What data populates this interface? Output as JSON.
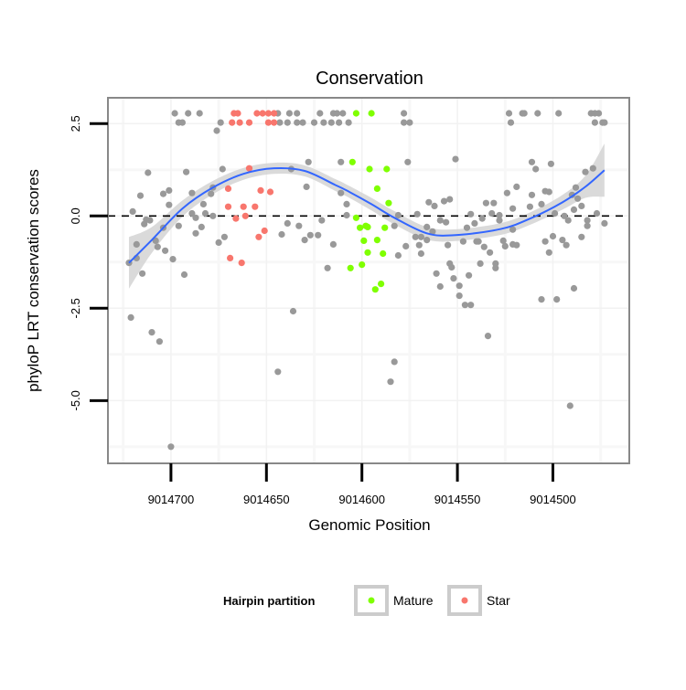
{
  "chart_data": {
    "type": "scatter",
    "title": "Conservation",
    "xlabel": "Genomic Position",
    "ylabel": "phyloP LRT conservation scores",
    "x_reversed": true,
    "xlim": [
      9014733,
      9014460
    ],
    "ylim": [
      -6.7,
      3.2
    ],
    "x_ticks": [
      9014700,
      9014650,
      9014600,
      9014550,
      9014500
    ],
    "x_tick_labels": [
      "9014700",
      "9014650",
      "9014600",
      "9014550",
      "9014500"
    ],
    "y_ticks": [
      2.5,
      0.0,
      -2.5,
      -5.0
    ],
    "y_tick_labels": [
      "2.5",
      "0.0",
      "-2.5",
      "-5.0"
    ],
    "reference_line": 0,
    "grid": true,
    "legend": {
      "title": "Hairpin partition",
      "position": "bottom",
      "entries": [
        {
          "label": "Mature",
          "color": "#7FFF00"
        },
        {
          "label": "Star",
          "color": "#F8766D"
        }
      ]
    },
    "colors": {
      "other": "#999999",
      "Mature": "#7FFF00",
      "Star": "#F8766D",
      "smooth": "#3366FF",
      "ribbon": "#D3D3D3"
    },
    "series": [
      {
        "name": "other",
        "points": [
          [
            9014698,
            2.78
          ],
          [
            9014691,
            2.78
          ],
          [
            9014685,
            2.78
          ],
          [
            9014696,
            2.53
          ],
          [
            9014694,
            2.53
          ],
          [
            9014676,
            2.31
          ],
          [
            9014674,
            2.53
          ],
          [
            9014644,
            2.78
          ],
          [
            9014638,
            2.78
          ],
          [
            9014634,
            2.78
          ],
          [
            9014622,
            2.78
          ],
          [
            9014615,
            2.78
          ],
          [
            9014613,
            2.78
          ],
          [
            9014610,
            2.78
          ],
          [
            9014643,
            2.53
          ],
          [
            9014639,
            2.53
          ],
          [
            9014634,
            2.53
          ],
          [
            9014631,
            2.53
          ],
          [
            9014625,
            2.53
          ],
          [
            9014620,
            2.53
          ],
          [
            9014616,
            2.53
          ],
          [
            9014612,
            2.53
          ],
          [
            9014607,
            2.53
          ],
          [
            9014578,
            2.78
          ],
          [
            9014578,
            2.53
          ],
          [
            9014575,
            2.53
          ],
          [
            9014523,
            2.78
          ],
          [
            9014522,
            2.53
          ],
          [
            9014516,
            2.78
          ],
          [
            9014515,
            2.78
          ],
          [
            9014508,
            2.78
          ],
          [
            9014497,
            2.78
          ],
          [
            9014480,
            2.78
          ],
          [
            9014478,
            2.78
          ],
          [
            9014476,
            2.78
          ],
          [
            9014478,
            2.53
          ],
          [
            9014474,
            2.53
          ],
          [
            9014473,
            2.53
          ],
          [
            9014712,
            1.17
          ],
          [
            9014692,
            1.19
          ],
          [
            9014716,
            0.55
          ],
          [
            9014704,
            0.6
          ],
          [
            9014701,
            0.69
          ],
          [
            9014701,
            0.3
          ],
          [
            9014720,
            0.12
          ],
          [
            9014713,
            -0.1
          ],
          [
            9014711,
            -0.12
          ],
          [
            9014714,
            -0.22
          ],
          [
            9014704,
            -0.32
          ],
          [
            9014696,
            -0.27
          ],
          [
            9014689,
            0.62
          ],
          [
            9014683,
            0.32
          ],
          [
            9014679,
            0.6
          ],
          [
            9014678,
            0.77
          ],
          [
            9014673,
            1.27
          ],
          [
            9014689,
            0.07
          ],
          [
            9014687,
            -0.05
          ],
          [
            9014682,
            0.07
          ],
          [
            9014678,
            0.0
          ],
          [
            9014684,
            -0.3
          ],
          [
            9014687,
            -0.47
          ],
          [
            9014672,
            -0.57
          ],
          [
            9014675,
            -0.72
          ],
          [
            9014718,
            -0.77
          ],
          [
            9014708,
            -0.67
          ],
          [
            9014707,
            -0.84
          ],
          [
            9014703,
            -0.94
          ],
          [
            9014718,
            -1.14
          ],
          [
            9014722,
            -1.27
          ],
          [
            9014699,
            -1.17
          ],
          [
            9014715,
            -1.56
          ],
          [
            9014693,
            -1.59
          ],
          [
            9014721,
            -2.75
          ],
          [
            9014710,
            -3.15
          ],
          [
            9014706,
            -3.4
          ],
          [
            9014700,
            -6.25
          ],
          [
            9014642,
            -0.5
          ],
          [
            9014639,
            -0.2
          ],
          [
            9014633,
            -0.27
          ],
          [
            9014630,
            -0.65
          ],
          [
            9014627,
            -0.52
          ],
          [
            9014623,
            -0.52
          ],
          [
            9014621,
            -0.12
          ],
          [
            9014615,
            -0.77
          ],
          [
            9014618,
            -1.41
          ],
          [
            9014636,
            -2.58
          ],
          [
            9014644,
            -4.22
          ],
          [
            9014637,
            1.27
          ],
          [
            9014629,
            0.79
          ],
          [
            9014628,
            1.46
          ],
          [
            9014611,
            0.62
          ],
          [
            9014608,
            0.32
          ],
          [
            9014608,
            0.02
          ],
          [
            9014611,
            1.46
          ],
          [
            9014576,
            1.46
          ],
          [
            9014551,
            1.54
          ],
          [
            9014511,
            1.46
          ],
          [
            9014509,
            1.27
          ],
          [
            9014501,
            1.41
          ],
          [
            9014483,
            1.19
          ],
          [
            9014479,
            1.29
          ],
          [
            9014524,
            0.62
          ],
          [
            9014519,
            0.79
          ],
          [
            9014511,
            0.57
          ],
          [
            9014504,
            0.67
          ],
          [
            9014502,
            0.65
          ],
          [
            9014488,
            0.77
          ],
          [
            9014490,
            0.57
          ],
          [
            9014487,
            0.47
          ],
          [
            9014485,
            0.27
          ],
          [
            9014489,
            0.17
          ],
          [
            9014506,
            0.32
          ],
          [
            9014512,
            0.25
          ],
          [
            9014521,
            0.2
          ],
          [
            9014499,
            0.07
          ],
          [
            9014494,
            0.0
          ],
          [
            9014492,
            -0.12
          ],
          [
            9014482,
            -0.12
          ],
          [
            9014482,
            -0.27
          ],
          [
            9014477,
            0.07
          ],
          [
            9014473,
            -0.2
          ],
          [
            9014485,
            -0.57
          ],
          [
            9014500,
            -0.55
          ],
          [
            9014495,
            -0.65
          ],
          [
            9014493,
            -0.79
          ],
          [
            9014504,
            -0.69
          ],
          [
            9014502,
            -0.99
          ],
          [
            9014521,
            -0.37
          ],
          [
            9014526,
            -0.67
          ],
          [
            9014525,
            -0.82
          ],
          [
            9014521,
            -0.77
          ],
          [
            9014519,
            -0.79
          ],
          [
            9014528,
            -0.12
          ],
          [
            9014528,
            0.02
          ],
          [
            9014532,
            0.07
          ],
          [
            9014535,
            0.35
          ],
          [
            9014531,
            0.35
          ],
          [
            9014537,
            -0.07
          ],
          [
            9014539,
            -0.69
          ],
          [
            9014536,
            -0.84
          ],
          [
            9014533,
            -0.99
          ],
          [
            9014543,
            0.05
          ],
          [
            9014541,
            -0.2
          ],
          [
            9014545,
            -0.32
          ],
          [
            9014547,
            -0.69
          ],
          [
            9014540,
            -0.69
          ],
          [
            9014555,
            -0.79
          ],
          [
            9014559,
            -0.12
          ],
          [
            9014556,
            -0.17
          ],
          [
            9014565,
            0.37
          ],
          [
            9014562,
            0.27
          ],
          [
            9014557,
            0.4
          ],
          [
            9014554,
            0.45
          ],
          [
            9014566,
            -0.3
          ],
          [
            9014563,
            -0.42
          ],
          [
            9014571,
            0.05
          ],
          [
            9014572,
            -0.57
          ],
          [
            9014569,
            -0.57
          ],
          [
            9014570,
            -0.79
          ],
          [
            9014566,
            -0.65
          ],
          [
            9014569,
            -1.02
          ],
          [
            9014577,
            -0.82
          ],
          [
            9014581,
            -1.07
          ],
          [
            9014583,
            -0.27
          ],
          [
            9014581,
            0.02
          ],
          [
            9014554,
            -1.29
          ],
          [
            9014553,
            -1.39
          ],
          [
            9014561,
            -1.56
          ],
          [
            9014559,
            -1.91
          ],
          [
            9014552,
            -1.69
          ],
          [
            9014549,
            -1.89
          ],
          [
            9014544,
            -1.61
          ],
          [
            9014549,
            -2.16
          ],
          [
            9014546,
            -2.41
          ],
          [
            9014543,
            -2.41
          ],
          [
            9014538,
            -1.29
          ],
          [
            9014530,
            -1.29
          ],
          [
            9014530,
            -1.41
          ],
          [
            9014506,
            -2.26
          ],
          [
            9014498,
            -2.26
          ],
          [
            9014489,
            -1.96
          ],
          [
            9014534,
            -3.25
          ],
          [
            9014583,
            -3.95
          ],
          [
            9014585,
            -4.49
          ],
          [
            9014491,
            -5.14
          ]
        ]
      },
      {
        "name": "Star",
        "points": [
          [
            9014667,
            2.78
          ],
          [
            9014665,
            2.78
          ],
          [
            9014655,
            2.78
          ],
          [
            9014652,
            2.78
          ],
          [
            9014649,
            2.78
          ],
          [
            9014646,
            2.78
          ],
          [
            9014668,
            2.53
          ],
          [
            9014664,
            2.53
          ],
          [
            9014659,
            2.53
          ],
          [
            9014649,
            2.53
          ],
          [
            9014646,
            2.53
          ],
          [
            9014659,
            1.29
          ],
          [
            9014670,
            0.74
          ],
          [
            9014653,
            0.69
          ],
          [
            9014648,
            0.65
          ],
          [
            9014670,
            0.25
          ],
          [
            9014662,
            0.25
          ],
          [
            9014656,
            0.25
          ],
          [
            9014666,
            -0.07
          ],
          [
            9014661,
            0.0
          ],
          [
            9014651,
            -0.4
          ],
          [
            9014654,
            -0.57
          ],
          [
            9014669,
            -1.14
          ],
          [
            9014663,
            -1.27
          ]
        ]
      },
      {
        "name": "Mature",
        "points": [
          [
            9014603,
            2.78
          ],
          [
            9014595,
            2.78
          ],
          [
            9014605,
            1.46
          ],
          [
            9014596,
            1.27
          ],
          [
            9014587,
            1.27
          ],
          [
            9014592,
            0.74
          ],
          [
            9014586,
            0.35
          ],
          [
            9014603,
            -0.05
          ],
          [
            9014601,
            -0.32
          ],
          [
            9014598,
            -0.27
          ],
          [
            9014597,
            -0.3
          ],
          [
            9014588,
            -0.32
          ],
          [
            9014599,
            -0.67
          ],
          [
            9014592,
            -0.65
          ],
          [
            9014597,
            -0.99
          ],
          [
            9014589,
            -1.02
          ],
          [
            9014600,
            -1.32
          ],
          [
            9014606,
            -1.41
          ],
          [
            9014590,
            -1.84
          ],
          [
            9014593,
            -1.99
          ]
        ]
      }
    ],
    "smooth": {
      "x": [
        9014722,
        9014710,
        9014694,
        9014678,
        9014662,
        9014646,
        9014630,
        9014614,
        9014608,
        9014595,
        9014583,
        9014566,
        9014551,
        9014527,
        9014511,
        9014495,
        9014483,
        9014473
      ],
      "y": [
        -1.27,
        -0.65,
        0.2,
        0.77,
        1.14,
        1.29,
        1.22,
        0.84,
        0.69,
        0.32,
        -0.05,
        -0.47,
        -0.52,
        -0.35,
        -0.05,
        0.37,
        0.79,
        1.24
      ],
      "se": [
        0.7,
        0.35,
        0.22,
        0.18,
        0.16,
        0.15,
        0.15,
        0.16,
        0.16,
        0.17,
        0.18,
        0.17,
        0.16,
        0.16,
        0.17,
        0.2,
        0.3,
        0.72
      ]
    }
  }
}
